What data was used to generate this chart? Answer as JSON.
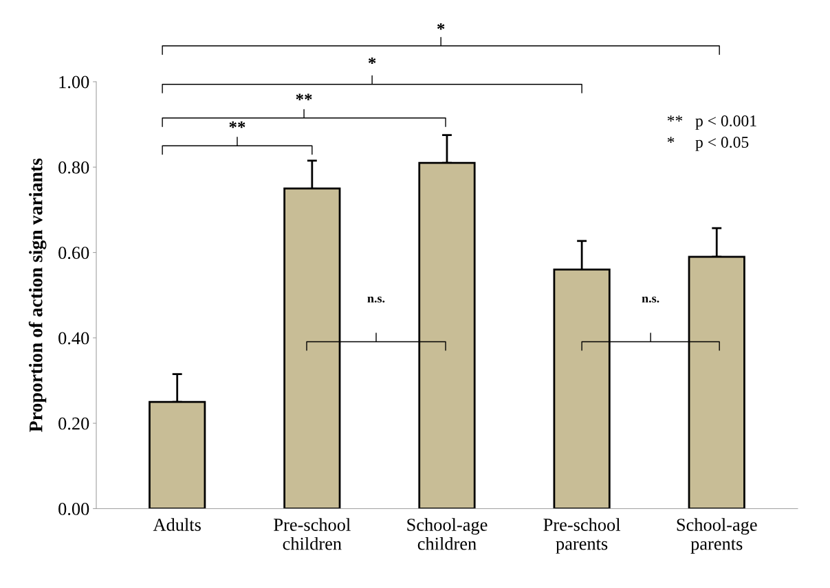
{
  "chart_data": {
    "type": "bar",
    "ylabel": "Proportion of action sign variants",
    "categories": [
      "Adults",
      "Pre-school\nchildren",
      "School-age\nchildren",
      "Pre-school\nparents",
      "School-age\nparents"
    ],
    "values": [
      0.25,
      0.75,
      0.81,
      0.56,
      0.59
    ],
    "errors": [
      [
        0.25,
        0.315
      ],
      [
        0.75,
        0.815
      ],
      [
        0.81,
        0.875
      ],
      [
        0.56,
        0.627
      ],
      [
        0.59,
        0.657
      ]
    ],
    "color": "#c8bd96",
    "ylim": [
      0,
      1.0
    ],
    "yticks": [
      {
        "value": 0,
        "label": "0.00"
      },
      {
        "value": 0.2,
        "label": "0.20"
      },
      {
        "value": 0.4,
        "label": "0.40"
      },
      {
        "value": 0.6,
        "label": "0.60"
      },
      {
        "value": 0.8,
        "label": "0.80"
      },
      {
        "value": 1.0,
        "label": "1.00"
      }
    ],
    "grid": false,
    "legend": false,
    "annotations": [
      "*",
      "*",
      "**",
      "**",
      "n.s.",
      "n.s.",
      "**   p < 0.001",
      "*     p < 0.05"
    ]
  }
}
